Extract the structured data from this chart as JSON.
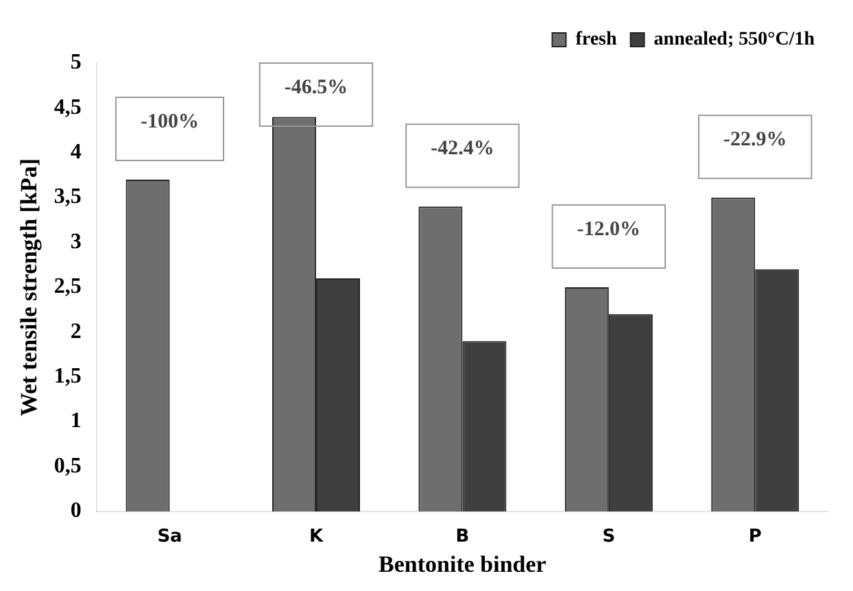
{
  "chart_data": {
    "type": "bar",
    "xlabel": "Bentonite binder",
    "ylabel": "Wet tensile strength [kPa]",
    "categories": [
      "Sa",
      "K",
      "B",
      "S",
      "P"
    ],
    "series": [
      {
        "name": "fresh",
        "color": "#6e6e6e",
        "values": [
          3.7,
          4.4,
          3.4,
          2.5,
          3.5
        ]
      },
      {
        "name": "annealed; 550°C/1h",
        "color": "#3f3f3f",
        "values": [
          0,
          2.6,
          1.9,
          2.2,
          2.7
        ]
      }
    ],
    "ylim": [
      0,
      5
    ],
    "yticks": [
      0,
      {
        "value": 0.5,
        "label": "0,5"
      },
      1,
      {
        "value": 1.5,
        "label": "1,5"
      },
      2,
      {
        "value": 2.5,
        "label": "2,5"
      },
      3,
      {
        "value": 3.5,
        "label": "3,5"
      },
      4,
      {
        "value": 4.5,
        "label": "4,5"
      },
      5
    ],
    "annotations": [
      "-100%",
      "-46.5%",
      "-42.4%",
      "-12.0%",
      "-22.9%"
    ],
    "legend": "top right",
    "grid": false
  }
}
